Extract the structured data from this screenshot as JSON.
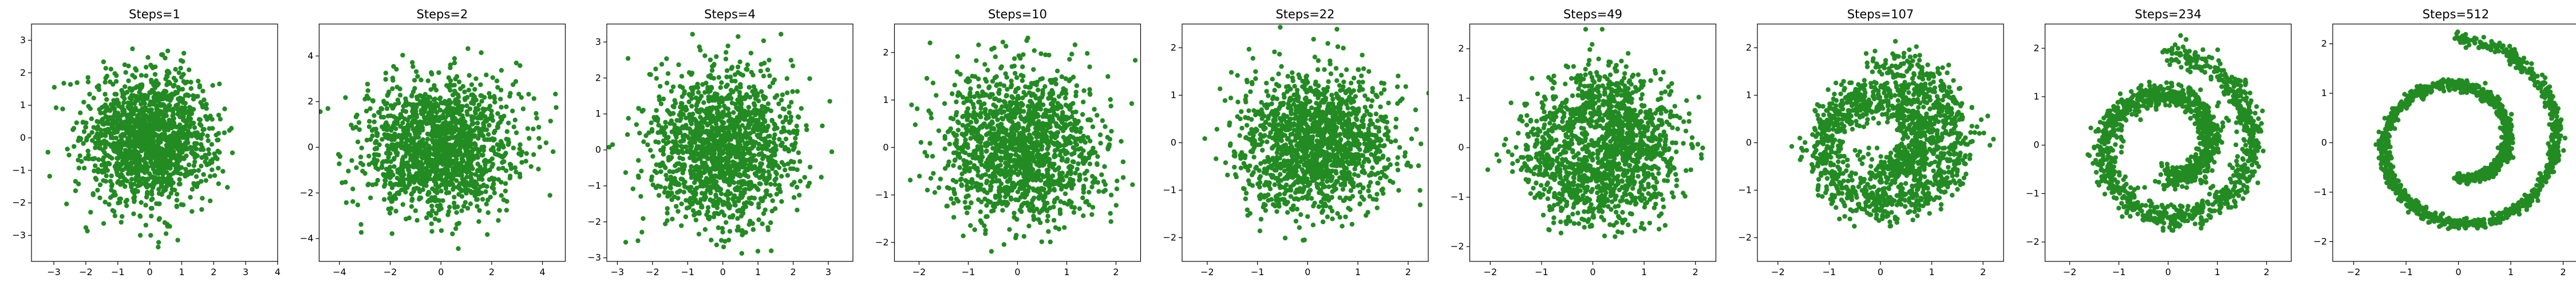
{
  "colors": {
    "points": "#228B22",
    "frame": "#000000",
    "background": "#ffffff"
  },
  "chart_data": [
    {
      "type": "scatter",
      "title": "Steps=1",
      "kind": "gaussian",
      "scale": 1.0,
      "xlim": [
        -3.7,
        4.0
      ],
      "ylim": [
        -3.8,
        3.5
      ],
      "xticks": [
        -3,
        -2,
        -1,
        0,
        1,
        2,
        3,
        4
      ],
      "yticks": [
        -3,
        -2,
        -1,
        0,
        1,
        2,
        3
      ],
      "xlabel": "",
      "ylabel": "",
      "grid": false,
      "legend": "none"
    },
    {
      "type": "scatter",
      "title": "Steps=2",
      "kind": "gaussian",
      "scale": 1.45,
      "xlim": [
        -4.8,
        4.9
      ],
      "ylim": [
        -5.0,
        5.4
      ],
      "xticks": [
        -4,
        -2,
        0,
        2,
        4
      ],
      "yticks": [
        -4,
        -2,
        0,
        2,
        4
      ],
      "xlabel": "",
      "ylabel": "",
      "grid": false,
      "legend": "none"
    },
    {
      "type": "scatter",
      "title": "Steps=4",
      "kind": "gaussian",
      "scale": 1.05,
      "xlim": [
        -3.3,
        3.7
      ],
      "ylim": [
        -3.1,
        3.5
      ],
      "xticks": [
        -3,
        -2,
        -1,
        0,
        1,
        2,
        3
      ],
      "yticks": [
        -3,
        -2,
        -1,
        0,
        1,
        2,
        3
      ],
      "xlabel": "",
      "ylabel": "",
      "grid": false,
      "legend": "none"
    },
    {
      "type": "scatter",
      "title": "Steps=10",
      "kind": "swirl",
      "swirl": 0.25,
      "xlim": [
        -2.5,
        2.5
      ],
      "ylim": [
        -2.4,
        2.6
      ],
      "xticks": [
        -2,
        -1,
        0,
        1,
        2
      ],
      "yticks": [
        -2,
        -1,
        0,
        1,
        2
      ],
      "xlabel": "",
      "ylabel": "",
      "grid": false,
      "legend": "none"
    },
    {
      "type": "scatter",
      "title": "Steps=22",
      "kind": "swirl",
      "swirl": 0.45,
      "xlim": [
        -2.5,
        2.4
      ],
      "ylim": [
        -2.5,
        2.5
      ],
      "xticks": [
        -2,
        -1,
        0,
        1,
        2
      ],
      "yticks": [
        -2,
        -1,
        0,
        1,
        2
      ],
      "xlabel": "",
      "ylabel": "",
      "grid": false,
      "legend": "none"
    },
    {
      "type": "scatter",
      "title": "Steps=49",
      "kind": "swirl",
      "swirl": 0.65,
      "xlim": [
        -2.4,
        2.4
      ],
      "ylim": [
        -2.3,
        2.5
      ],
      "xticks": [
        -2,
        -1,
        0,
        1,
        2
      ],
      "yticks": [
        -2,
        -1,
        0,
        1,
        2
      ],
      "xlabel": "",
      "ylabel": "",
      "grid": false,
      "legend": "none"
    },
    {
      "type": "scatter",
      "title": "Steps=107",
      "kind": "swirl",
      "swirl": 0.8,
      "xlim": [
        -2.4,
        2.4
      ],
      "ylim": [
        -2.5,
        2.5
      ],
      "xticks": [
        -2,
        -1,
        0,
        1,
        2
      ],
      "yticks": [
        -2,
        -1,
        0,
        1,
        2
      ],
      "xlabel": "",
      "ylabel": "",
      "grid": false,
      "legend": "none"
    },
    {
      "type": "scatter",
      "title": "Steps=234",
      "kind": "swirl",
      "swirl": 0.9,
      "xlim": [
        -2.5,
        2.5
      ],
      "ylim": [
        -2.4,
        2.5
      ],
      "xticks": [
        -2,
        -1,
        0,
        1,
        2
      ],
      "yticks": [
        -2,
        -1,
        0,
        1,
        2
      ],
      "xlabel": "",
      "ylabel": "",
      "grid": false,
      "legend": "none"
    },
    {
      "type": "scatter",
      "title": "Steps=512",
      "kind": "swirl",
      "swirl": 1.0,
      "xlim": [
        -2.4,
        2.3
      ],
      "ylim": [
        -2.4,
        2.4
      ],
      "xticks": [
        -2,
        -1,
        0,
        1,
        2
      ],
      "yticks": [
        -2,
        -1,
        0,
        1,
        2
      ],
      "xlabel": "",
      "ylabel": "",
      "grid": false,
      "legend": "none"
    }
  ]
}
